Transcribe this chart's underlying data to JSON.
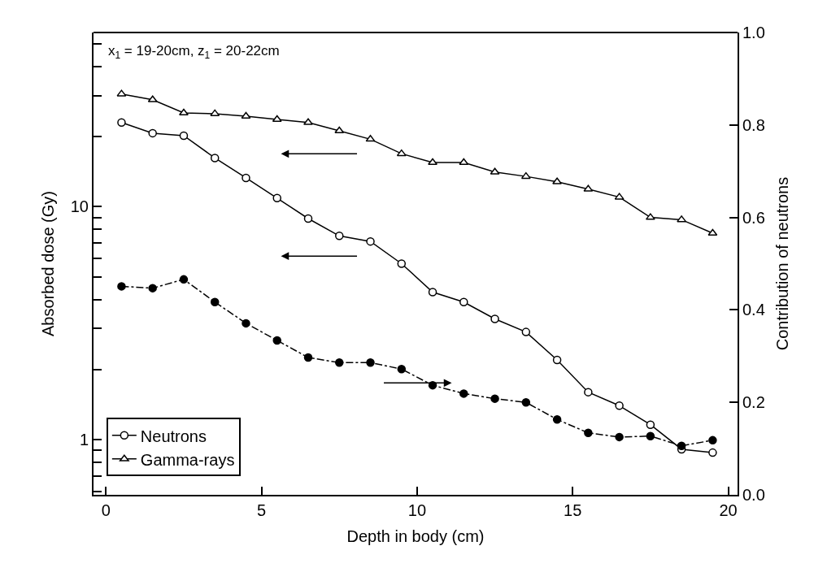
{
  "chart_data": {
    "type": "line",
    "xlabel": "Depth in body (cm)",
    "ylabel": "Absorbed dose (Gy)",
    "y2label": "Contribution of neutrons",
    "annotations": [
      "x$_{1}$ = 19-20cm, z$_{1}$ = 20-22cm"
    ],
    "x": [
      0.5,
      1.5,
      2.5,
      3.5,
      4.5,
      5.5,
      6.5,
      7.5,
      8.5,
      9.5,
      10.5,
      11.5,
      12.5,
      13.5,
      14.5,
      15.5,
      16.5,
      17.5,
      18.5,
      19.5
    ],
    "series": [
      {
        "name": "Neutrons",
        "color": "#000000",
        "marker": "circle",
        "line_style": "solid",
        "axis": "y",
        "values": [
          23.0,
          20.7,
          20.2,
          16.2,
          13.3,
          10.9,
          8.9,
          7.5,
          7.1,
          5.7,
          4.3,
          3.9,
          3.3,
          2.9,
          2.2,
          1.6,
          1.4,
          1.16,
          0.91,
          0.88
        ]
      },
      {
        "name": "Gamma-rays",
        "color": "#000000",
        "marker": "triangle",
        "line_style": "solid",
        "axis": "y",
        "values": [
          30.5,
          28.8,
          25.3,
          25.1,
          24.5,
          23.7,
          23.0,
          21.2,
          19.5,
          16.9,
          15.5,
          15.5,
          14.1,
          13.5,
          12.8,
          11.9,
          11.0,
          9.0,
          8.8,
          7.7
        ]
      },
      {
        "color": "#000000",
        "marker": "circle",
        "line_style": "dashed",
        "axis": "y2",
        "values": [
          0.451,
          0.447,
          0.466,
          0.417,
          0.371,
          0.334,
          0.297,
          0.286,
          0.286,
          0.272,
          0.237,
          0.219,
          0.208,
          0.2,
          0.163,
          0.134,
          0.125,
          0.127,
          0.106,
          0.118
        ]
      }
    ],
    "log": "y",
    "legend": "bottom left",
    "xlim": [
      -0.4,
      20.3
    ],
    "xticks": [
      0,
      5,
      10,
      15,
      20
    ],
    "ylim": [
      0.58,
      56
    ],
    "yticks": [
      {
        "value": 0.6,
        "label": null
      },
      {
        "value": 0.7,
        "label": null
      },
      {
        "value": 0.8,
        "label": null
      },
      {
        "value": 0.9,
        "label": null
      },
      1,
      {
        "value": 2,
        "label": null
      },
      {
        "value": 3,
        "label": null
      },
      {
        "value": 4,
        "label": null
      },
      {
        "value": 5,
        "label": null
      },
      {
        "value": 6,
        "label": null
      },
      {
        "value": 7,
        "label": null
      },
      {
        "value": 8,
        "label": null
      },
      {
        "value": 9,
        "label": null
      },
      10,
      {
        "value": 20,
        "label": null
      },
      {
        "value": 30,
        "label": null
      },
      {
        "value": 40,
        "label": null
      },
      {
        "value": 50,
        "label": null
      }
    ],
    "y2lim": [
      0,
      1.0
    ],
    "y2ticks": [
      {
        "value": 0,
        "label": "0.0"
      },
      {
        "value": 0.2,
        "label": "0.2"
      },
      {
        "value": 0.4,
        "label": "0.4"
      },
      {
        "value": 0.6,
        "label": "0.6"
      },
      {
        "value": 0.8,
        "label": "0.8"
      },
      {
        "value": 1.0,
        "label": "1.0"
      }
    ]
  }
}
